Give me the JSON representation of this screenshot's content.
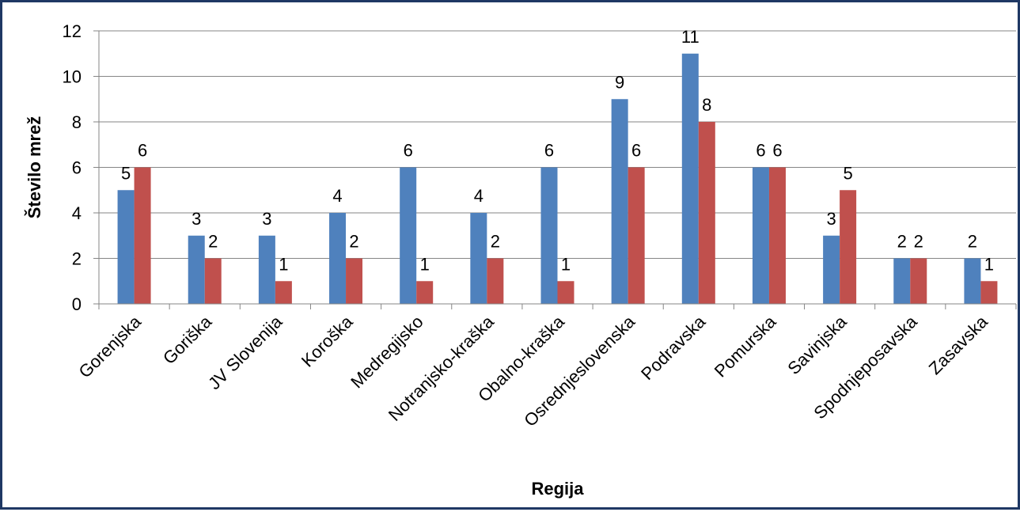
{
  "chart_data": {
    "type": "bar",
    "title": "",
    "xlabel": "Regija",
    "ylabel": "Število mrež",
    "ylim": [
      0,
      12
    ],
    "ytick_step": 2,
    "grid": true,
    "legend": "none",
    "categories": [
      "Gorenjska",
      "Goriška",
      "JV Slovenija",
      "Koroška",
      "Medregijsko",
      "Notranjsko-kraška",
      "Obalno-kraška",
      "Osrednjeslovenska",
      "Podravska",
      "Pomurska",
      "Savinjska",
      "Spodnjeposavska",
      "Zasavska"
    ],
    "series": [
      {
        "color": "#4f81bd",
        "values": [
          5,
          3,
          3,
          4,
          6,
          4,
          6,
          9,
          11,
          6,
          3,
          2,
          2
        ]
      },
      {
        "color": "#c0504d",
        "values": [
          6,
          2,
          1,
          2,
          1,
          2,
          1,
          6,
          8,
          6,
          5,
          2,
          1
        ]
      }
    ]
  },
  "colors": {
    "frame": "#1f3864",
    "grid": "#868686",
    "axis": "#868686"
  }
}
